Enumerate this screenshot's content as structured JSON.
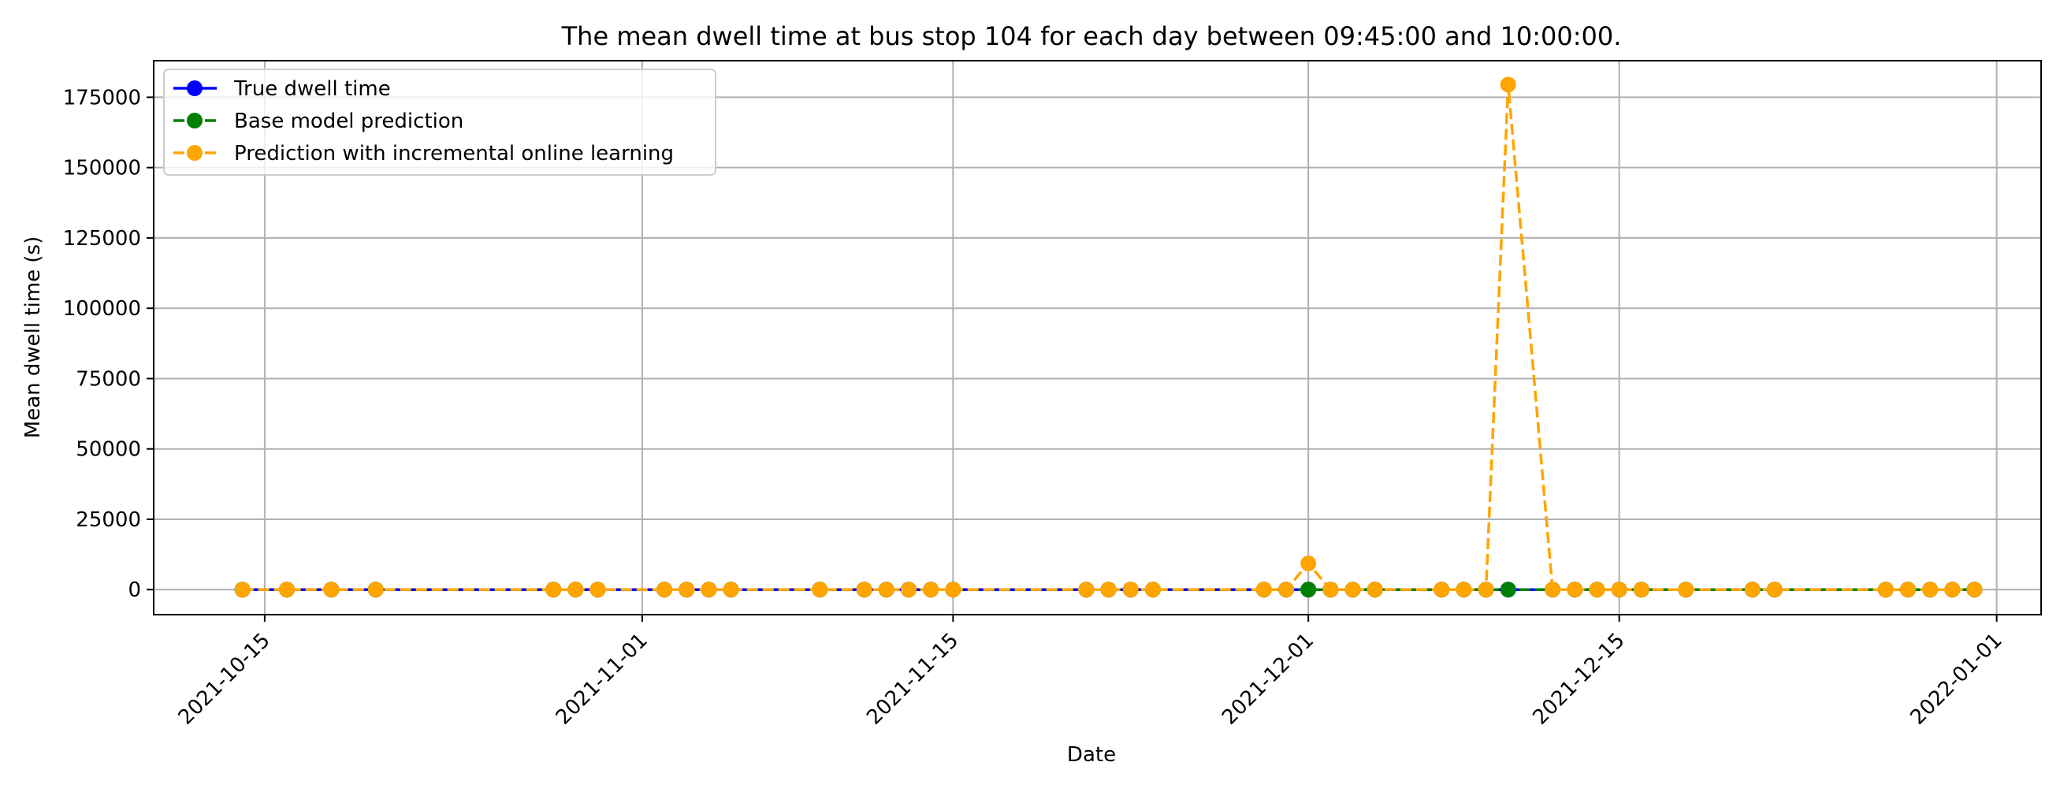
{
  "chart_data": {
    "type": "line",
    "title": "The mean dwell time at bus stop 104 for each day between 09:45:00 and 10:00:00.",
    "xlabel": "Date",
    "ylabel": "Mean dwell time (s)",
    "x_tick_labels": [
      "2021-10-15",
      "2021-11-01",
      "2021-11-15",
      "2021-12-01",
      "2021-12-15",
      "2022-01-01"
    ],
    "y_tick_labels": [
      "0",
      "25000",
      "50000",
      "75000",
      "100000",
      "125000",
      "150000",
      "175000"
    ],
    "ylim": [
      -8900,
      188000
    ],
    "xlim": [
      "2021-10-10",
      "2022-01-03"
    ],
    "grid": true,
    "legend_position": "top-left",
    "colors": {
      "true": "#0000ff",
      "base": "#008000",
      "online": "#ffa500"
    },
    "x": [
      "2021-10-14",
      "2021-10-16",
      "2021-10-18",
      "2021-10-20",
      "2021-10-28",
      "2021-10-29",
      "2021-10-30",
      "2021-11-02",
      "2021-11-03",
      "2021-11-04",
      "2021-11-05",
      "2021-11-09",
      "2021-11-11",
      "2021-11-12",
      "2021-11-13",
      "2021-11-14",
      "2021-11-15",
      "2021-11-21",
      "2021-11-22",
      "2021-11-23",
      "2021-11-24",
      "2021-11-29",
      "2021-11-30",
      "2021-12-01",
      "2021-12-02",
      "2021-12-03",
      "2021-12-04",
      "2021-12-07",
      "2021-12-08",
      "2021-12-09",
      "2021-12-10",
      "2021-12-12",
      "2021-12-13",
      "2021-12-14",
      "2021-12-15",
      "2021-12-16",
      "2021-12-18",
      "2021-12-21",
      "2021-12-22",
      "2021-12-27",
      "2021-12-28",
      "2021-12-29",
      "2021-12-30",
      "2021-12-31"
    ],
    "series": [
      {
        "name": "True dwell time",
        "values": [
          0,
          0,
          0,
          0,
          0,
          0,
          0,
          0,
          0,
          0,
          0,
          0,
          0,
          0,
          0,
          0,
          0,
          0,
          0,
          0,
          0,
          0,
          0,
          0,
          0,
          0,
          0,
          0,
          0,
          0,
          0,
          0,
          0,
          0,
          0,
          0,
          0,
          0,
          0,
          0,
          0,
          0,
          0,
          0
        ]
      },
      {
        "name": "Base model prediction",
        "values": [
          0,
          0,
          0,
          0,
          0,
          0,
          0,
          0,
          0,
          0,
          0,
          0,
          0,
          0,
          0,
          0,
          0,
          0,
          0,
          0,
          0,
          0,
          0,
          0,
          0,
          0,
          0,
          0,
          0,
          0,
          0,
          0,
          0,
          0,
          0,
          0,
          0,
          0,
          0,
          0,
          0,
          0,
          0,
          0
        ]
      },
      {
        "name": "Prediction with incremental online learning",
        "values": [
          0,
          0,
          0,
          0,
          0,
          0,
          0,
          0,
          0,
          0,
          0,
          0,
          0,
          0,
          0,
          0,
          0,
          0,
          0,
          0,
          0,
          0,
          0,
          9300,
          0,
          0,
          0,
          0,
          0,
          0,
          179500,
          0,
          0,
          0,
          0,
          0,
          0,
          0,
          0,
          0,
          0,
          0,
          0,
          0
        ]
      }
    ]
  }
}
